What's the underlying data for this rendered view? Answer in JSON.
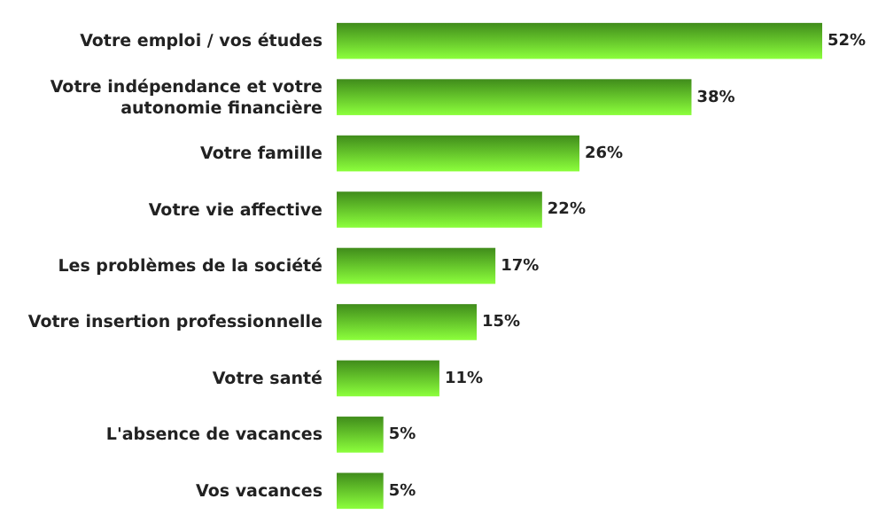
{
  "chart_data": {
    "type": "bar",
    "orientation": "horizontal",
    "categories": [
      "Votre emploi / vos études",
      "Votre indépendance et votre autonomie financière",
      "Votre famille",
      "Votre vie affective",
      "Les problèmes de la société",
      "Votre insertion professionnelle",
      "Votre santé",
      "L'absence de vacances",
      "Vos vacances"
    ],
    "values": [
      52,
      38,
      26,
      22,
      17,
      15,
      11,
      5,
      5
    ],
    "value_labels": [
      "52%",
      "38%",
      "26%",
      "22%",
      "17%",
      "15%",
      "11%",
      "5%",
      "5%"
    ],
    "color": "#4fae22"
  }
}
